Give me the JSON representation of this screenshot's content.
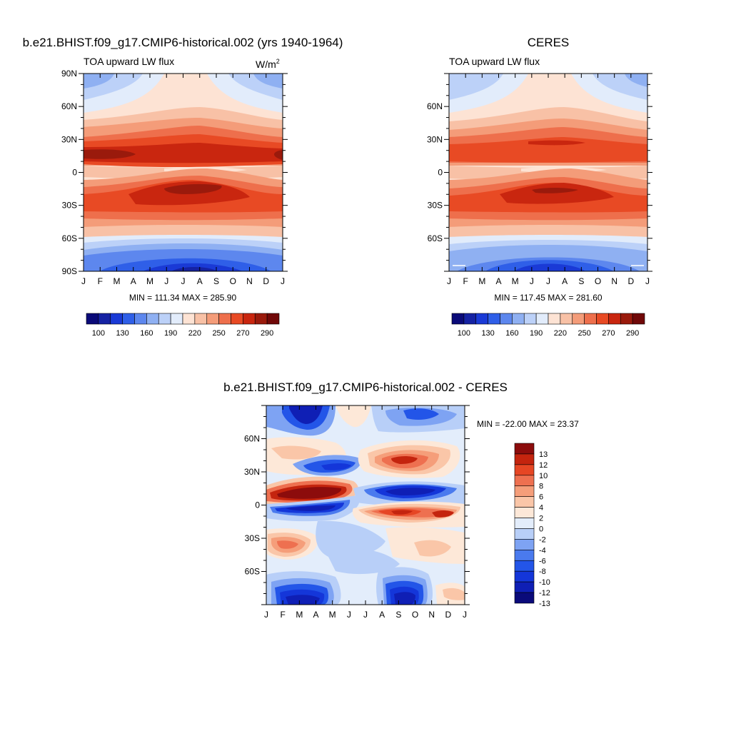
{
  "palette": {
    "abs": [
      "#0a0a78",
      "#1522a3",
      "#1a3ad6",
      "#2f5fe8",
      "#5d87ee",
      "#8fb0f2",
      "#bcd1f8",
      "#e2ecfb",
      "#fde3d4",
      "#f8c1a6",
      "#f49c79",
      "#ee6f4c",
      "#e84a24",
      "#c9260f",
      "#9a1a0c",
      "#700808"
    ],
    "diff": [
      "#0a0a7a",
      "#0f1fb5",
      "#1436d9",
      "#2355e8",
      "#4a7aee",
      "#7ea3f3",
      "#b8cff8",
      "#e3edfb",
      "#fde8d8",
      "#fac6a8",
      "#f59e7a",
      "#ee7050",
      "#e64624",
      "#c4240e",
      "#8c0c0c"
    ]
  },
  "chart_data": [
    {
      "type": "heatmap",
      "id": "model",
      "title": "b.e21.BHIST.f09_g17.CMIP6-historical.002 (yrs 1940-1964)",
      "left_label": "TOA upward LW flux",
      "units_base": "W/m",
      "units_sup": "2",
      "x_ticks": [
        "J",
        "F",
        "M",
        "A",
        "M",
        "J",
        "J",
        "A",
        "S",
        "O",
        "N",
        "D",
        "J"
      ],
      "y_ticks": [
        "90N",
        "60N",
        "30N",
        "0",
        "30S",
        "60S",
        "90S"
      ],
      "stats": "MIN = 111.34 MAX = 285.90",
      "min": 111.34,
      "max": 285.9,
      "colorbar_labels": [
        "100",
        "130",
        "160",
        "190",
        "220",
        "250",
        "270",
        "290"
      ]
    },
    {
      "type": "heatmap",
      "id": "obs",
      "title": "CERES",
      "left_label": "TOA upward LW flux",
      "x_ticks": [
        "J",
        "F",
        "M",
        "A",
        "M",
        "J",
        "J",
        "A",
        "S",
        "O",
        "N",
        "D",
        "J"
      ],
      "y_ticks": [
        "60N",
        "30N",
        "0",
        "30S",
        "60S"
      ],
      "stats": "MIN = 117.45 MAX = 281.60",
      "min": 117.45,
      "max": 281.6,
      "colorbar_labels": [
        "100",
        "130",
        "160",
        "190",
        "220",
        "250",
        "270",
        "290"
      ]
    },
    {
      "type": "heatmap",
      "id": "diff",
      "title": "b.e21.BHIST.f09_g17.CMIP6-historical.002 - CERES",
      "x_ticks": [
        "J",
        "F",
        "M",
        "A",
        "M",
        "J",
        "J",
        "A",
        "S",
        "O",
        "N",
        "D",
        "J"
      ],
      "y_ticks": [
        "60N",
        "30N",
        "0",
        "30S",
        "60S"
      ],
      "stats": "MIN = -22.00 MAX =  23.37",
      "min": -22.0,
      "max": 23.37,
      "colorbar_labels": [
        "13",
        "12",
        "10",
        "8",
        "6",
        "4",
        "2",
        "0",
        "-2",
        "-4",
        "-6",
        "-8",
        "-10",
        "-12",
        "-13"
      ]
    }
  ]
}
